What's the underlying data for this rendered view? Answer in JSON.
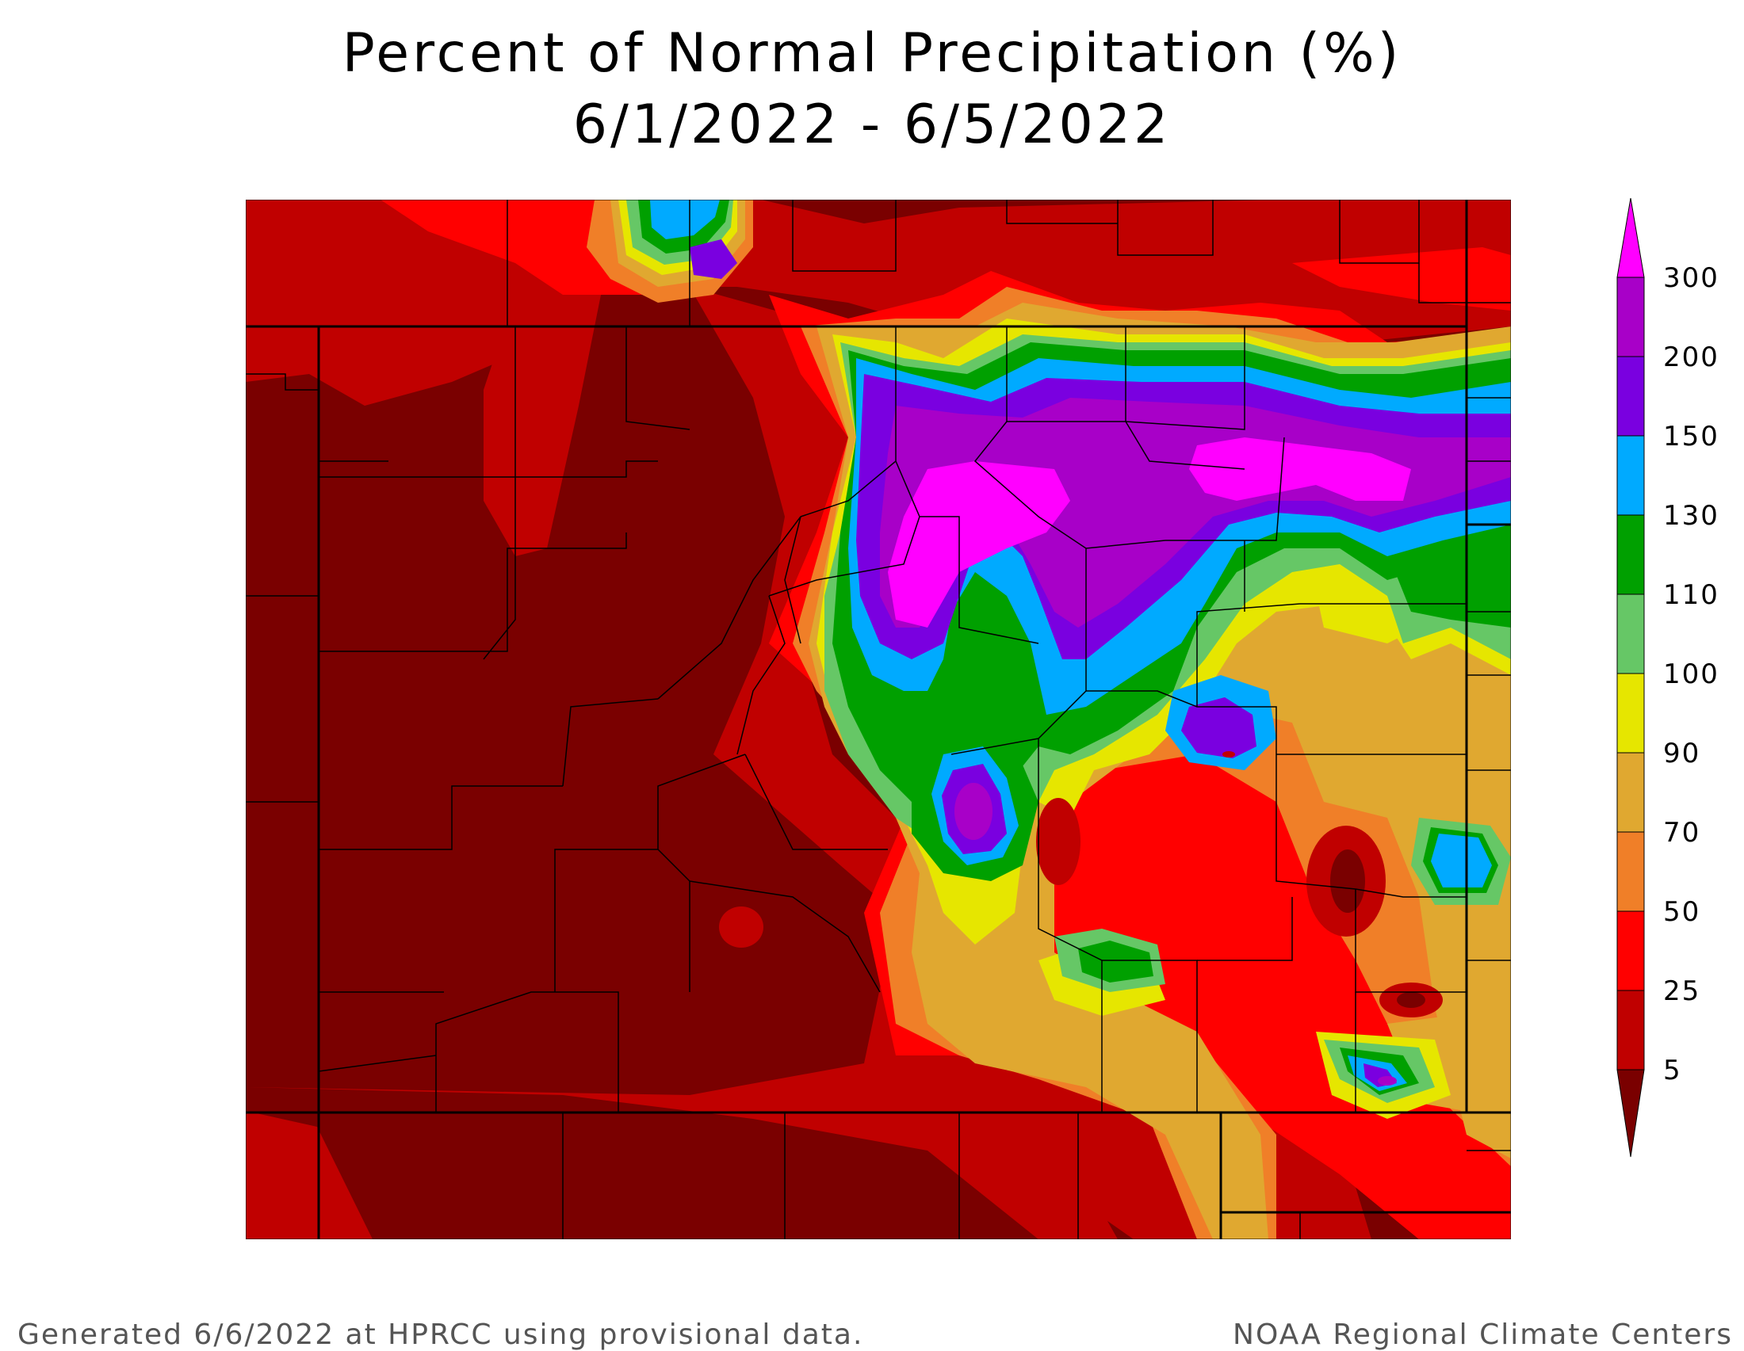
{
  "title": {
    "line1": "Percent of Normal Precipitation (%)",
    "line2": "6/1/2022 - 6/5/2022"
  },
  "legend": {
    "levels": [
      "5",
      "25",
      "50",
      "70",
      "90",
      "100",
      "110",
      "130",
      "150",
      "200",
      "300"
    ],
    "colors": {
      "below_5": "#7a0000",
      "5_25": "#c00000",
      "25_50": "#ff0000",
      "50_70": "#f07f28",
      "70_90": "#e0a830",
      "90_100": "#e6e600",
      "100_110": "#66c766",
      "110_130": "#00a000",
      "130_150": "#00aaff",
      "150_200": "#7a00e0",
      "200_300": "#a800c8",
      "above_300": "#ff00ff"
    }
  },
  "footer": {
    "left": "Generated 6/6/2022 at HPRCC using provisional data.",
    "right": "NOAA Regional Climate Centers"
  }
}
